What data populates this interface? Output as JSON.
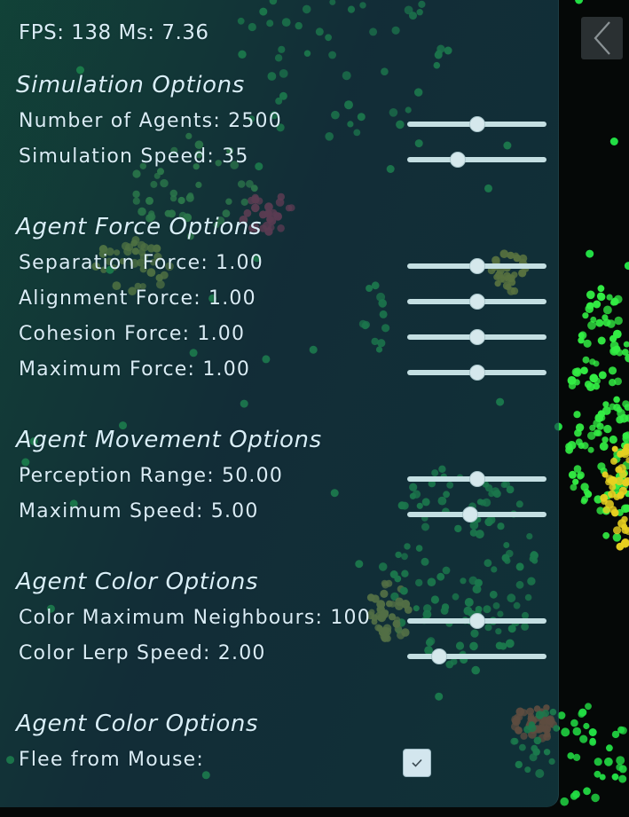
{
  "stats": {
    "fps_text": "FPS: 138 Ms: 7.36"
  },
  "sections": [
    {
      "title": "Simulation Options",
      "controls": [
        {
          "label": "Number of Agents: 2500",
          "value_fraction": 0.5
        },
        {
          "label": "Simulation Speed: 35",
          "value_fraction": 0.36
        }
      ]
    },
    {
      "title": "Agent Force Options",
      "controls": [
        {
          "label": "Separation Force: 1.00",
          "value_fraction": 0.5
        },
        {
          "label": "Alignment Force: 1.00",
          "value_fraction": 0.5
        },
        {
          "label": "Cohesion Force: 1.00",
          "value_fraction": 0.5
        },
        {
          "label": "Maximum Force: 1.00",
          "value_fraction": 0.5
        }
      ]
    },
    {
      "title": "Agent Movement Options",
      "controls": [
        {
          "label": "Perception Range: 50.00",
          "value_fraction": 0.5
        },
        {
          "label": "Maximum Speed: 5.00",
          "value_fraction": 0.45
        }
      ]
    },
    {
      "title": "Agent Color Options",
      "controls": [
        {
          "label": "Color Maximum Neighbours: 100",
          "value_fraction": 0.5
        },
        {
          "label": "Color Lerp Speed: 2.00",
          "value_fraction": 0.23
        }
      ]
    },
    {
      "title": "Agent Color Options",
      "toggle": {
        "label": "Flee from Mouse:",
        "checked": true
      }
    }
  ],
  "icons": {
    "back": "chevron-left-icon",
    "check": "check-icon"
  },
  "colors": {
    "panel": "#1d5a5c",
    "text": "#d9ecf5",
    "slider_track": "#c4dfe2",
    "agent_green": "#22dd44",
    "agent_yellow": "#d8d020",
    "agent_red": "#e8305a",
    "agent_orange": "#e85a20"
  }
}
